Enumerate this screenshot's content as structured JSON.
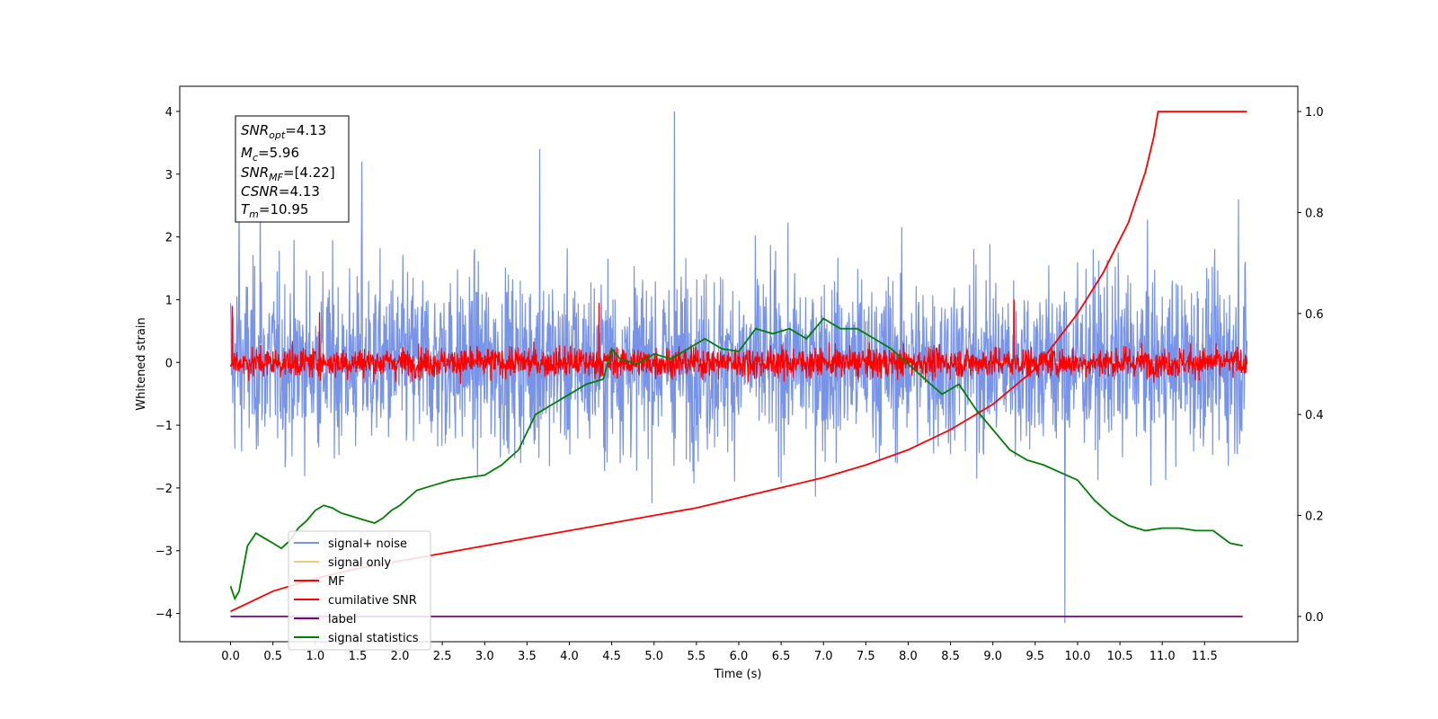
{
  "chart_data": {
    "type": "line",
    "xlabel": "Time (s)",
    "ylabel": "Whitened strain",
    "xlim": [
      -0.6,
      12.6
    ],
    "ylim": [
      -4.45,
      4.4
    ],
    "y2lim": [
      -0.05,
      1.05
    ],
    "x_ticks": [
      "0.0",
      "0.5",
      "1.0",
      "1.5",
      "2.0",
      "2.5",
      "3.0",
      "3.5",
      "4.0",
      "4.5",
      "5.0",
      "5.5",
      "6.0",
      "6.5",
      "7.0",
      "7.5",
      "8.0",
      "8.5",
      "9.0",
      "9.5",
      "10.0",
      "10.5",
      "11.0",
      "11.5"
    ],
    "y_ticks": [
      "4",
      "3",
      "2",
      "1",
      "0",
      "−1",
      "−2",
      "−3",
      "−4"
    ],
    "y2_ticks": [
      "1.0",
      "0.8",
      "0.6",
      "0.4",
      "0.2",
      "0.0"
    ],
    "legend_position": "lower-left",
    "legend": [
      "signal+ noise",
      "signal only",
      "MF",
      "cumilative SNR",
      "label",
      "signal statistics"
    ],
    "info_box": {
      "lines": [
        {
          "main": "SNR",
          "sub": "opt",
          "value": "=4.13"
        },
        {
          "main": "M",
          "sub": "c",
          "value": "=5.96"
        },
        {
          "main": "SNR",
          "sub": "MF",
          "value": "=[4.22]"
        },
        {
          "main": "CSNR",
          "sub": "",
          "value": "=4.13"
        },
        {
          "main": "T",
          "sub": "m",
          "value": "=10.95"
        }
      ]
    },
    "series": [
      {
        "name": "signal+ noise",
        "color": "#7894e8",
        "axis": "left",
        "summary": "noise centered at 0 spanning roughly -3 to 3",
        "x_range": [
          0,
          12
        ],
        "spikes": [
          [
            0.1,
            2.6
          ],
          [
            0.35,
            3.1
          ],
          [
            1.55,
            3.2
          ],
          [
            3.65,
            3.4
          ],
          [
            5.24,
            4.0
          ],
          [
            9.85,
            -4.15
          ],
          [
            11.9,
            2.6
          ]
        ]
      },
      {
        "name": "signal only",
        "color": "#f5c97a",
        "axis": "left",
        "x": [
          0,
          12
        ],
        "y": [
          0,
          0
        ]
      },
      {
        "name": "MF",
        "color": "#ff0000",
        "axis": "left",
        "summary": "filtered noise centered at 0 spanning roughly -0.4 to 0.6",
        "x_range": [
          0,
          12
        ],
        "spikes": [
          [
            0.02,
            0.9
          ],
          [
            1.05,
            0.8
          ],
          [
            4.35,
            0.95
          ],
          [
            9.25,
            1.0
          ]
        ]
      },
      {
        "name": "cumilative SNR",
        "color": "#ff0000",
        "axis": "right",
        "x": [
          0,
          0.5,
          1.0,
          1.5,
          2.0,
          2.5,
          3.0,
          3.5,
          4.0,
          4.5,
          5.0,
          5.5,
          6.0,
          6.5,
          7.0,
          7.5,
          8.0,
          8.5,
          9.0,
          9.5,
          10.0,
          10.3,
          10.6,
          10.8,
          10.9,
          10.95,
          12.0
        ],
        "y": [
          0.01,
          0.05,
          0.075,
          0.095,
          0.11,
          0.125,
          0.14,
          0.155,
          0.17,
          0.185,
          0.2,
          0.215,
          0.235,
          0.255,
          0.275,
          0.3,
          0.33,
          0.37,
          0.42,
          0.49,
          0.6,
          0.68,
          0.78,
          0.88,
          0.95,
          1.0,
          1.0
        ]
      },
      {
        "name": "label",
        "color": "#800080",
        "axis": "right",
        "x": [
          0,
          11.95
        ],
        "y": [
          0,
          0
        ]
      },
      {
        "name": "signal statistics",
        "color": "#008000",
        "axis": "right",
        "x": [
          0,
          0.05,
          0.1,
          0.2,
          0.3,
          0.4,
          0.5,
          0.6,
          0.7,
          0.8,
          0.9,
          1.0,
          1.1,
          1.2,
          1.3,
          1.4,
          1.5,
          1.6,
          1.7,
          1.8,
          1.9,
          2.0,
          2.2,
          2.4,
          2.6,
          2.8,
          3.0,
          3.2,
          3.4,
          3.6,
          3.8,
          4.0,
          4.2,
          4.4,
          4.5,
          4.6,
          4.8,
          5.0,
          5.2,
          5.4,
          5.6,
          5.8,
          6.0,
          6.2,
          6.4,
          6.6,
          6.8,
          7.0,
          7.2,
          7.4,
          7.6,
          7.8,
          8.0,
          8.2,
          8.4,
          8.6,
          8.8,
          9.0,
          9.2,
          9.4,
          9.6,
          9.8,
          10.0,
          10.2,
          10.4,
          10.6,
          10.8,
          11.0,
          11.2,
          11.4,
          11.6,
          11.8,
          11.95
        ],
        "y": [
          0.06,
          0.035,
          0.05,
          0.14,
          0.165,
          0.155,
          0.145,
          0.135,
          0.15,
          0.175,
          0.19,
          0.21,
          0.22,
          0.215,
          0.205,
          0.2,
          0.195,
          0.19,
          0.185,
          0.195,
          0.21,
          0.22,
          0.25,
          0.26,
          0.27,
          0.275,
          0.28,
          0.3,
          0.33,
          0.4,
          0.42,
          0.44,
          0.46,
          0.47,
          0.53,
          0.51,
          0.5,
          0.52,
          0.51,
          0.53,
          0.55,
          0.53,
          0.525,
          0.57,
          0.56,
          0.57,
          0.55,
          0.59,
          0.57,
          0.57,
          0.55,
          0.53,
          0.5,
          0.47,
          0.44,
          0.46,
          0.41,
          0.37,
          0.33,
          0.31,
          0.3,
          0.285,
          0.27,
          0.23,
          0.2,
          0.18,
          0.17,
          0.175,
          0.175,
          0.17,
          0.17,
          0.145,
          0.14
        ]
      }
    ]
  }
}
